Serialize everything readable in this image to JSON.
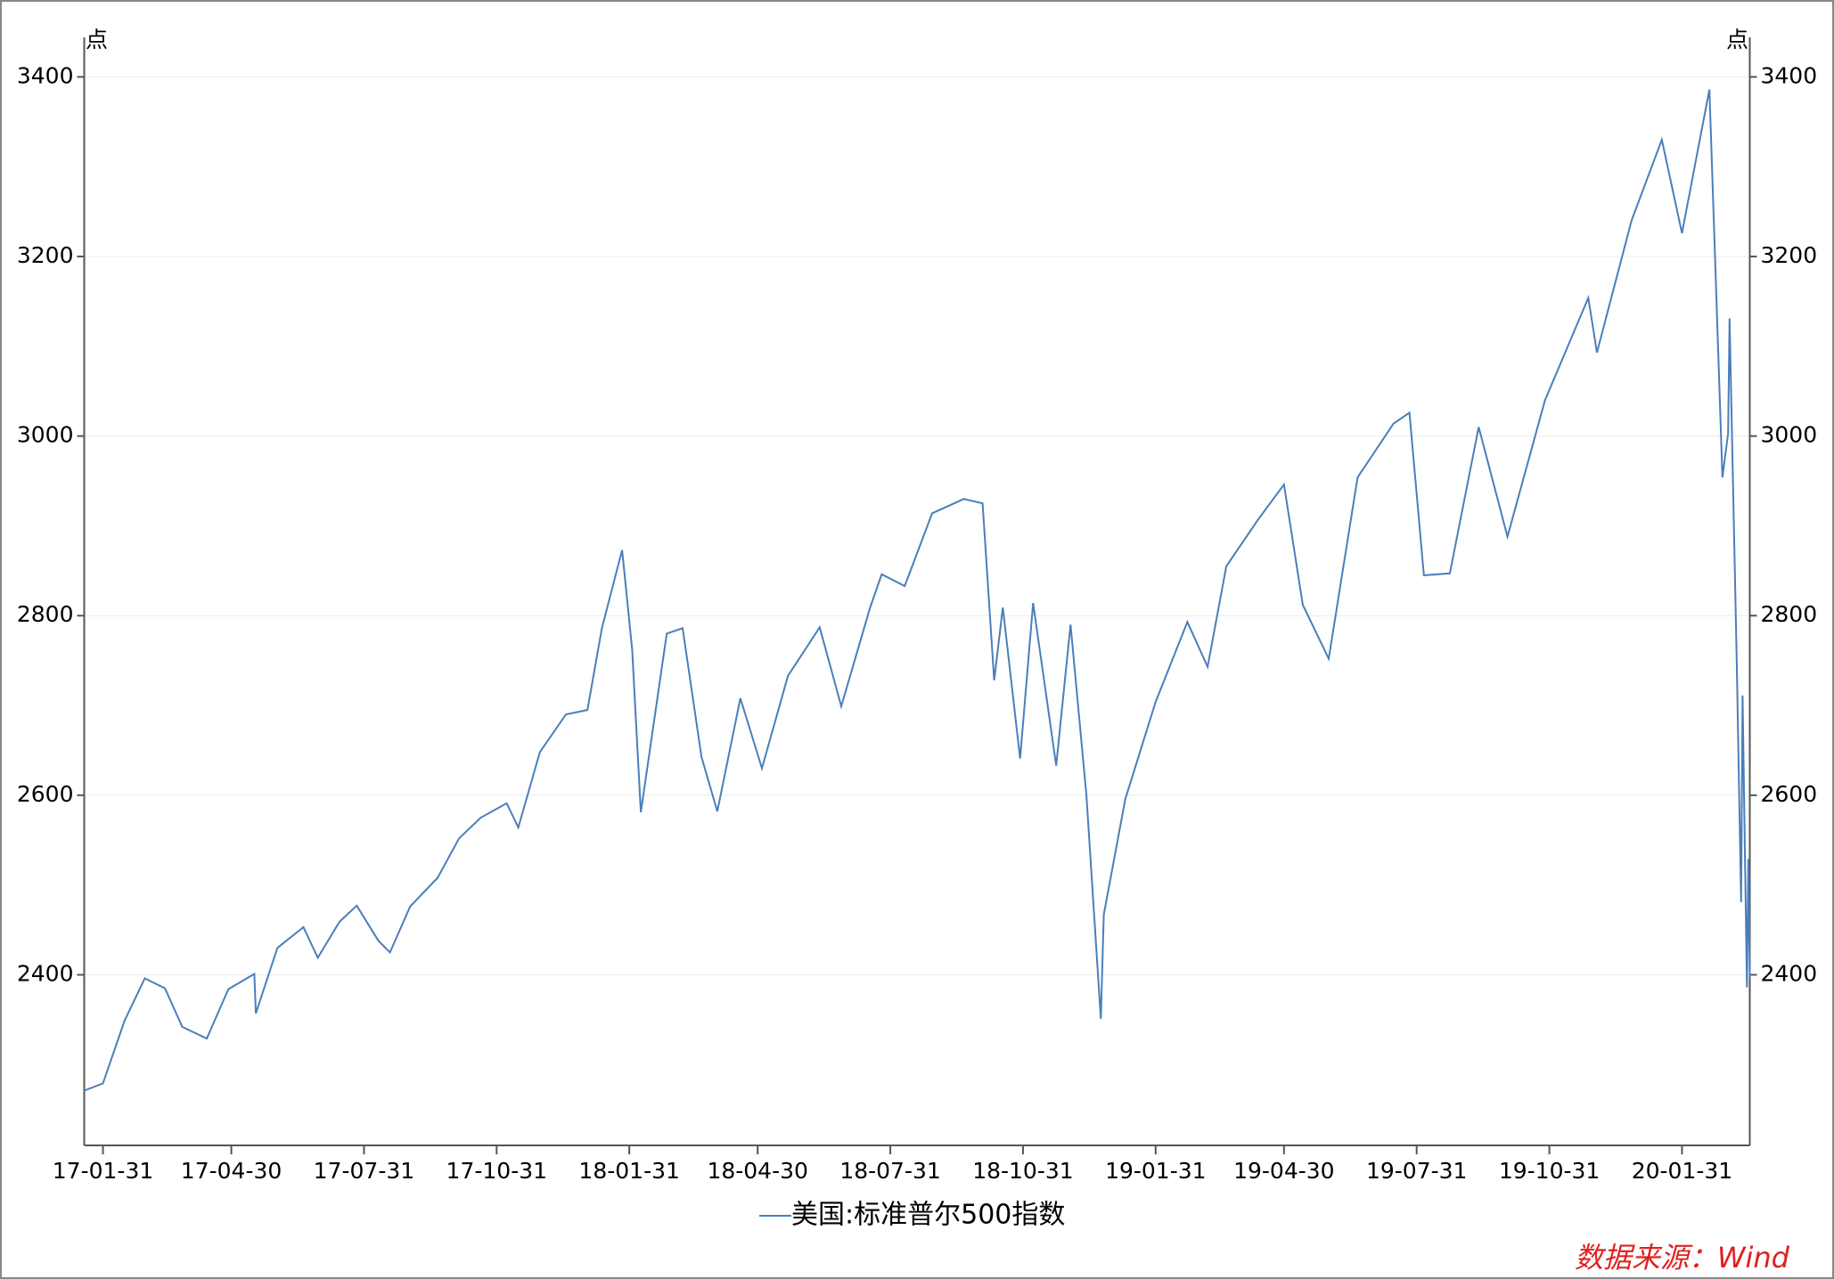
{
  "chart_data": {
    "type": "line",
    "y_unit": "点",
    "y2_unit": "点",
    "x": [
      "17-01-18",
      "17-01-31",
      "17-02-15",
      "17-03-01",
      "17-03-15",
      "17-03-27",
      "17-04-13",
      "17-04-28",
      "17-05-16",
      "17-05-17",
      "17-06-01",
      "17-06-19",
      "17-06-29",
      "17-07-14",
      "17-07-26",
      "17-08-10",
      "17-08-18",
      "17-09-01",
      "17-09-20",
      "17-10-05",
      "17-10-20",
      "17-11-07",
      "17-11-15",
      "17-11-30",
      "17-12-18",
      "18-01-02",
      "18-01-12",
      "18-01-26",
      "18-02-02",
      "18-02-08",
      "18-02-26",
      "18-03-09",
      "18-03-22",
      "18-04-02",
      "18-04-18",
      "18-05-03",
      "18-05-21",
      "18-06-12",
      "18-06-27",
      "18-07-17",
      "18-07-25",
      "18-08-10",
      "18-08-29",
      "18-09-20",
      "18-10-03",
      "18-10-11",
      "18-10-17",
      "18-10-29",
      "18-11-07",
      "18-11-23",
      "18-12-03",
      "18-12-14",
      "18-12-24",
      "18-12-26",
      "19-01-10",
      "19-01-31",
      "19-02-22",
      "19-03-08",
      "19-03-21",
      "19-04-12",
      "19-04-30",
      "19-05-13",
      "19-05-31",
      "19-06-20",
      "19-07-15",
      "19-07-26",
      "19-08-05",
      "19-08-23",
      "19-09-12",
      "19-10-02",
      "19-10-28",
      "19-11-27",
      "19-12-03",
      "19-12-27",
      "20-01-17",
      "20-01-31",
      "20-02-19",
      "20-02-28",
      "20-03-03",
      "20-03-04",
      "20-03-09",
      "20-03-12",
      "20-03-13",
      "20-03-16",
      "20-03-17",
      "20-03-18"
    ],
    "series": [
      {
        "name": "美国:标准普尔500指数",
        "color": "#4a7ebb",
        "values": [
          2271,
          2279,
          2349,
          2396,
          2385,
          2342,
          2329,
          2384,
          2401,
          2357,
          2430,
          2453,
          2419,
          2459,
          2477,
          2438,
          2425,
          2476,
          2508,
          2552,
          2575,
          2591,
          2564,
          2648,
          2690,
          2695,
          2786,
          2873,
          2762,
          2581,
          2780,
          2786,
          2643,
          2582,
          2708,
          2630,
          2733,
          2787,
          2699,
          2809,
          2846,
          2833,
          2914,
          2930,
          2925,
          2728,
          2809,
          2641,
          2814,
          2633,
          2790,
          2600,
          2351,
          2467,
          2596,
          2704,
          2793,
          2743,
          2855,
          2907,
          2946,
          2812,
          2752,
          2954,
          3014,
          3026,
          2845,
          2847,
          3010,
          2888,
          3040,
          3154,
          3093,
          3240,
          3330,
          3226,
          3386,
          2954,
          3003,
          3131,
          2747,
          2481,
          2711,
          2386,
          2529,
          2398
        ]
      }
    ],
    "xlim": [
      "17-01-18",
      "20-03-18"
    ],
    "xticks": [
      "17-01-31",
      "17-04-30",
      "17-07-31",
      "17-10-31",
      "18-01-31",
      "18-04-30",
      "18-07-31",
      "18-10-31",
      "19-01-31",
      "19-04-30",
      "19-07-31",
      "19-10-31",
      "20-01-31"
    ],
    "ylim": [
      2210,
      3444
    ],
    "yticks": [
      2400,
      2600,
      2800,
      3000,
      3200,
      3400
    ],
    "grid": true,
    "source": "数据来源：Wind"
  }
}
